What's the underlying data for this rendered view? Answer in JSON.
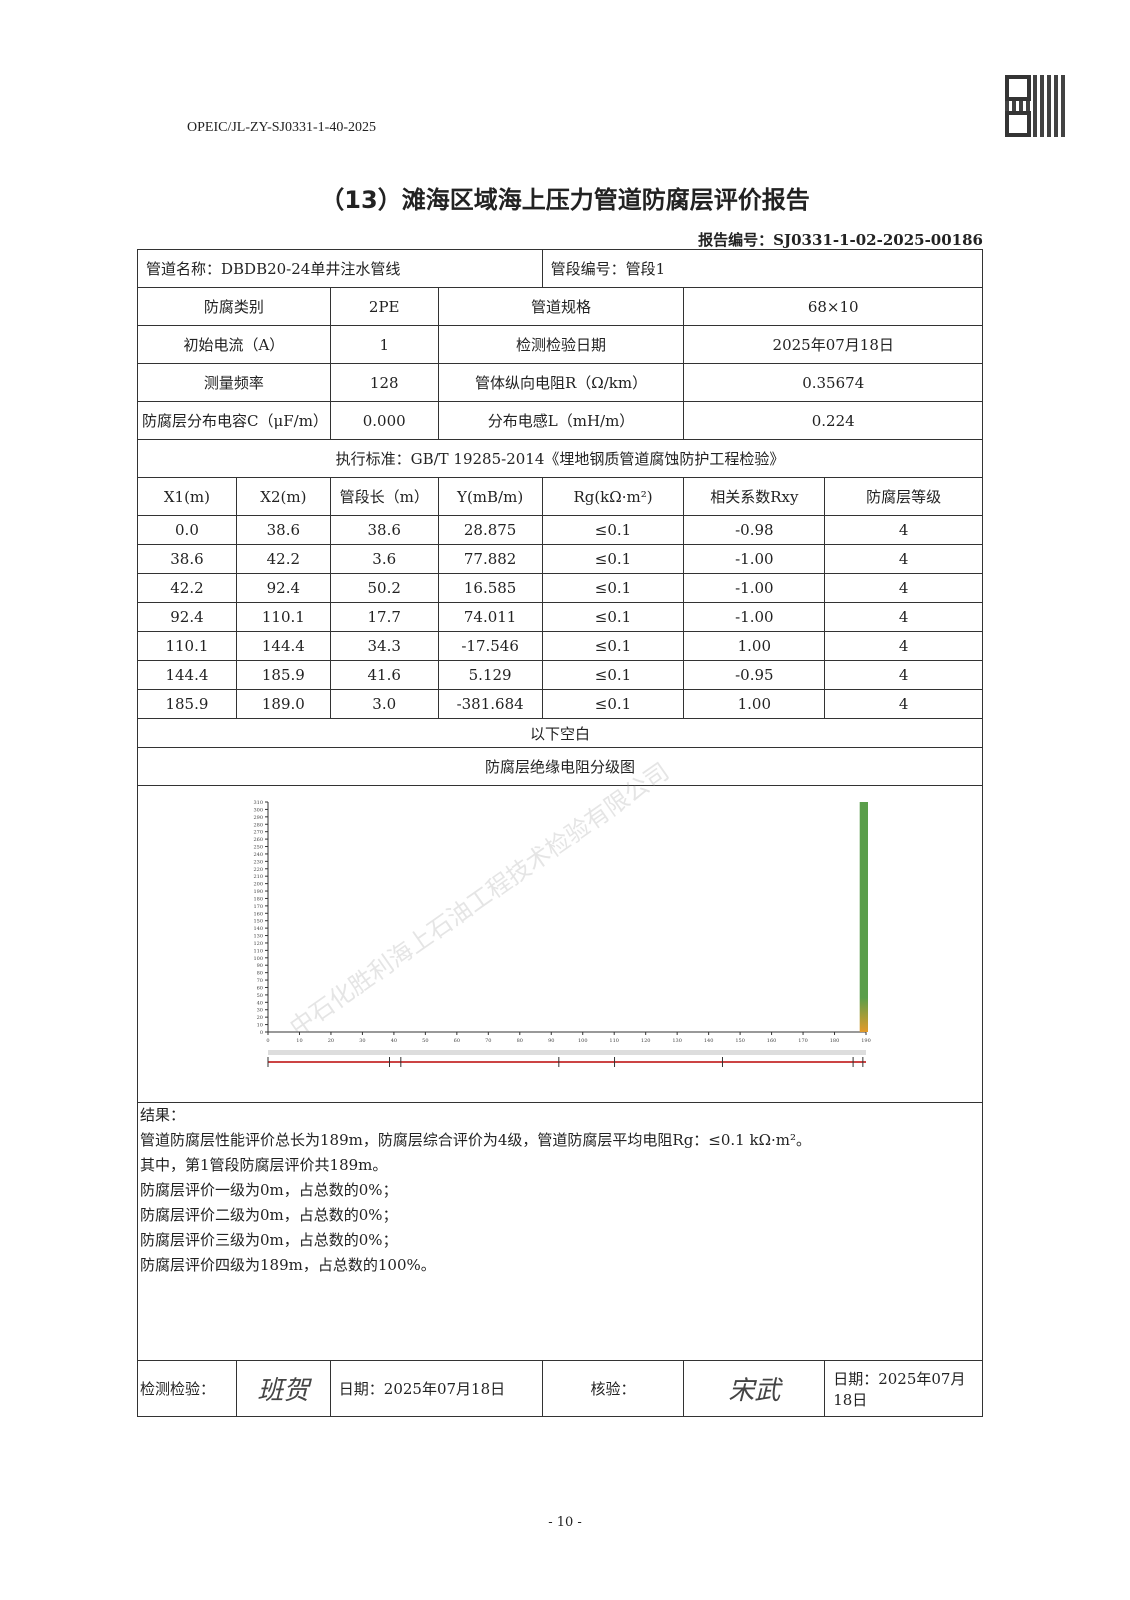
{
  "doc_number": "OPEIC/JL-ZY-SJ0331-1-40-2025",
  "title": "（13）滩海区域海上压力管道防腐层评价报告",
  "report_no": "报告编号：SJ0331-1-02-2025-00186",
  "pipeline_name": "管道名称：DBDB20-24单井注水管线",
  "segment_no": "管段编号：管段1",
  "params": [
    [
      "防腐类别",
      "2PE",
      "管道规格",
      "68×10"
    ],
    [
      "初始电流（A）",
      "1",
      "检测检验日期",
      "2025年07月18日"
    ],
    [
      "测量频率",
      "128",
      "管体纵向电阻R（Ω/km）",
      "0.35674"
    ],
    [
      "防腐层分布电容C（μF/m）",
      "0.000",
      "分布电感L（mH/m）",
      "0.224"
    ]
  ],
  "standard": "执行标准：GB/T 19285-2014《埋地钢质管道腐蚀防护工程检验》",
  "columns": [
    "X1(m)",
    "X2(m)",
    "管段长（m）",
    "Y(mB/m)",
    "Rg(kΩ·m²)",
    "相关系数Rxy",
    "防腐层等级"
  ],
  "rows": [
    [
      "0.0",
      "38.6",
      "38.6",
      "28.875",
      "≤0.1",
      "-0.98",
      "4"
    ],
    [
      "38.6",
      "42.2",
      "3.6",
      "77.882",
      "≤0.1",
      "-1.00",
      "4"
    ],
    [
      "42.2",
      "92.4",
      "50.2",
      "16.585",
      "≤0.1",
      "-1.00",
      "4"
    ],
    [
      "92.4",
      "110.1",
      "17.7",
      "74.011",
      "≤0.1",
      "-1.00",
      "4"
    ],
    [
      "110.1",
      "144.4",
      "34.3",
      "-17.546",
      "≤0.1",
      "1.00",
      "4"
    ],
    [
      "144.4",
      "185.9",
      "41.6",
      "5.129",
      "≤0.1",
      "-0.95",
      "4"
    ],
    [
      "185.9",
      "189.0",
      "3.0",
      "-381.684",
      "≤0.1",
      "1.00",
      "4"
    ]
  ],
  "blank_below": "以下空白",
  "chart_title": "防腐层绝缘电阻分级图",
  "chart_data": {
    "type": "bar",
    "xlim": [
      0,
      190
    ],
    "ylim": [
      0,
      310
    ],
    "xticks": [
      0,
      10,
      20,
      30,
      40,
      50,
      60,
      70,
      80,
      90,
      100,
      110,
      120,
      130,
      140,
      150,
      160,
      170,
      180,
      190
    ],
    "yticks": [
      0,
      10,
      20,
      30,
      40,
      50,
      60,
      70,
      80,
      90,
      100,
      110,
      120,
      130,
      140,
      150,
      160,
      170,
      180,
      190,
      200,
      210,
      220,
      230,
      240,
      250,
      260,
      270,
      280,
      290,
      300,
      310
    ],
    "bars": [
      {
        "x_start": 188,
        "x_end": 190,
        "color_top": "#5a9e4a",
        "color_bottom": "#e39a2a"
      }
    ],
    "segment_markers": [
      0,
      38.6,
      42.2,
      92.4,
      110.1,
      144.4,
      185.9,
      189.0
    ]
  },
  "result": {
    "heading": "结果：",
    "lines": [
      "管道防腐层性能评价总长为189m，防腐层综合评价为4级，管道防腐层平均电阻Rg：≤0.1 kΩ·m²。",
      "其中，第1管段防腐层评价共189m。",
      "防腐层评价一级为0m，占总数的0%；",
      "防腐层评价二级为0m，占总数的0%；",
      "防腐层评价三级为0m，占总数的0%；",
      "防腐层评价四级为189m，占总数的100%。"
    ]
  },
  "sign": {
    "inspect_label": "检测检验：",
    "inspect_sig": "班贺",
    "date1": "日期：2025年07月18日",
    "verify_label": "核验：",
    "verify_sig": "宋武",
    "date2": "日期：2025年07月18日"
  },
  "page_number": "- 10 -",
  "watermark": "中石化胜利海上石油工程技术检验有限公司"
}
